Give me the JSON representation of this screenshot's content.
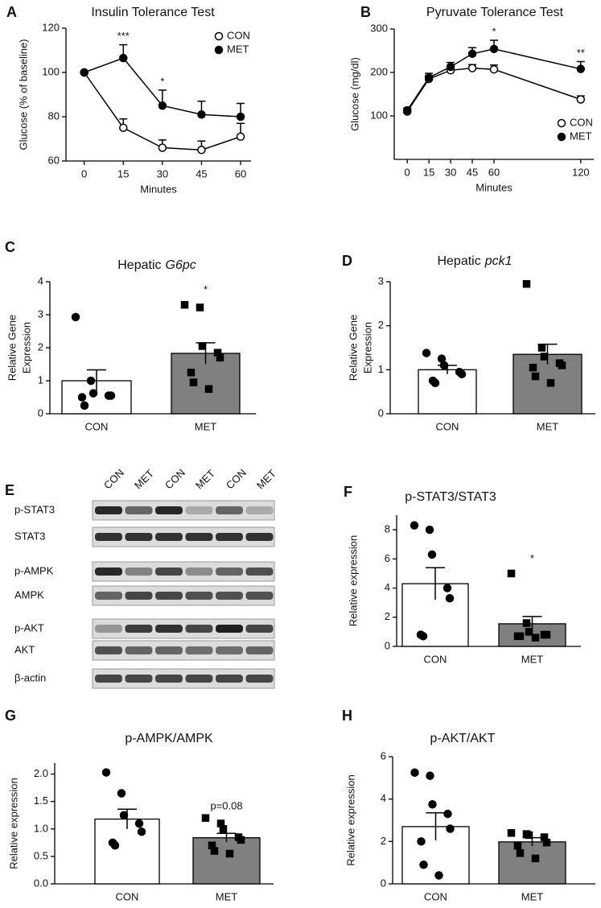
{
  "chart_data": [
    {
      "panel": "A",
      "type": "line",
      "title": "Insulin Tolerance Test",
      "xlabel": "Minutes",
      "ylabel": "Glucose (% of baseline)",
      "x": [
        0,
        15,
        30,
        45,
        60
      ],
      "xlim": [
        -7,
        64
      ],
      "xticks": [
        0,
        15,
        30,
        45,
        60
      ],
      "ylim": [
        60,
        120
      ],
      "yticks": [
        60,
        80,
        100,
        120
      ],
      "legend": "upper right",
      "series": [
        {
          "name": "CON",
          "color": "#000000",
          "fill": "#ffffff",
          "values": [
            100,
            75,
            66,
            65,
            71
          ],
          "errors": [
            0,
            4,
            3.5,
            4,
            6
          ]
        },
        {
          "name": "MET",
          "color": "#000000",
          "fill": "#000000",
          "values": [
            100,
            106.5,
            85,
            81,
            80
          ],
          "errors": [
            0,
            6,
            7,
            6,
            6
          ]
        }
      ],
      "annotations": [
        null,
        "***",
        "*",
        null,
        null
      ]
    },
    {
      "panel": "B",
      "type": "line",
      "title": "Pyruvate Tolerance Test",
      "xlabel": "Minutes",
      "ylabel": "Glucose (mg/dl)",
      "x": [
        0,
        15,
        30,
        45,
        60,
        120
      ],
      "xlim": [
        -9,
        129
      ],
      "xticks": [
        0,
        15,
        30,
        45,
        60,
        120
      ],
      "ylim": [
        0,
        300
      ],
      "yticks": [
        100,
        200,
        300
      ],
      "legend": "lower right",
      "series": [
        {
          "name": "CON",
          "color": "#000000",
          "fill": "#ffffff",
          "values": [
            110,
            185,
            205,
            210,
            207,
            138
          ],
          "errors": [
            5,
            8,
            8,
            8,
            10,
            8
          ]
        },
        {
          "name": "MET",
          "color": "#000000",
          "fill": "#000000",
          "values": [
            113,
            188,
            213,
            243,
            254,
            208
          ],
          "errors": [
            5,
            10,
            10,
            14,
            20,
            17
          ]
        }
      ],
      "annotations": [
        null,
        null,
        null,
        null,
        "*",
        "**"
      ]
    },
    {
      "panel": "C",
      "type": "bar",
      "title": [
        "Hepatic",
        "G6pc"
      ],
      "title_italic": [
        false,
        true
      ],
      "ylabel": [
        "Relative Gene",
        "Expression"
      ],
      "categories": [
        "CON",
        "MET"
      ],
      "values": [
        1.0,
        1.83
      ],
      "errors": [
        0.33,
        0.32
      ],
      "colors": [
        "#ffffff",
        "#808080"
      ],
      "markers": [
        "circle",
        "square"
      ],
      "points": [
        [
          2.93,
          1.0,
          0.62,
          0.55,
          0.55,
          0.5,
          0.25
        ],
        [
          3.3,
          3.22,
          2.05,
          1.85,
          1.7,
          1.25,
          0.95,
          0.75
        ]
      ],
      "ylim": [
        0,
        4
      ],
      "yticks": [
        0,
        1,
        2,
        3,
        4
      ],
      "annotations": [
        null,
        "*"
      ]
    },
    {
      "panel": "D",
      "type": "bar",
      "title": [
        "Hepatic",
        "pck1"
      ],
      "title_italic": [
        false,
        true
      ],
      "ylabel": [
        "Relative Gene",
        "Expression"
      ],
      "categories": [
        "CON",
        "MET"
      ],
      "values": [
        1.0,
        1.35
      ],
      "errors": [
        0.1,
        0.23
      ],
      "colors": [
        "#ffffff",
        "#808080"
      ],
      "markers": [
        "circle",
        "square"
      ],
      "points": [
        [
          1.38,
          1.25,
          1.1,
          0.95,
          0.9,
          0.75,
          0.7
        ],
        [
          2.95,
          1.5,
          1.3,
          1.15,
          1.1,
          1.05,
          0.85,
          0.7
        ]
      ],
      "ylim": [
        0,
        3
      ],
      "yticks": [
        0,
        1,
        2,
        3
      ],
      "annotations": [
        null,
        null
      ]
    },
    {
      "panel": "F",
      "type": "bar",
      "title": "p-STAT3/STAT3",
      "ylabel": "Relative expression",
      "categories": [
        "CON",
        "MET"
      ],
      "values": [
        4.3,
        1.55
      ],
      "errors": [
        1.1,
        0.5
      ],
      "colors": [
        "#ffffff",
        "#808080"
      ],
      "markers": [
        "circle",
        "square"
      ],
      "points": [
        [
          8.3,
          8.0,
          6.3,
          4.0,
          3.3,
          0.8,
          0.7
        ],
        [
          5.0,
          1.6,
          1.0,
          0.8,
          0.8,
          0.7,
          0.7,
          0.6
        ]
      ],
      "ylim": [
        0,
        9
      ],
      "yticks": [
        0,
        2,
        4,
        6,
        8
      ],
      "annotations": [
        null,
        "*"
      ]
    },
    {
      "panel": "G",
      "type": "bar",
      "title": "p-AMPK/AMPK",
      "ylabel": "Relative expression",
      "categories": [
        "CON",
        "MET"
      ],
      "values": [
        1.18,
        0.84
      ],
      "errors": [
        0.18,
        0.08
      ],
      "colors": [
        "#ffffff",
        "#808080"
      ],
      "markers": [
        "circle",
        "square"
      ],
      "points": [
        [
          2.03,
          1.65,
          1.25,
          1.1,
          0.95,
          0.75,
          0.7
        ],
        [
          1.2,
          1.1,
          1.0,
          0.85,
          0.8,
          0.7,
          0.6,
          0.55
        ]
      ],
      "ylim": [
        0,
        2.2
      ],
      "yticks": [
        {
          "value": 0,
          "label": "0.0"
        },
        0.5,
        {
          "value": 1,
          "label": "1.0"
        },
        1.5,
        {
          "value": 2,
          "label": "2.0"
        }
      ],
      "annotations": [
        null,
        "p=0.08"
      ]
    },
    {
      "panel": "H",
      "type": "bar",
      "title": "p-AKT/AKT",
      "ylabel": "Relative expression",
      "categories": [
        "CON",
        "MET"
      ],
      "values": [
        2.7,
        1.98
      ],
      "errors": [
        0.65,
        0.2
      ],
      "colors": [
        "#ffffff",
        "#808080"
      ],
      "markers": [
        "circle",
        "square"
      ],
      "points": [
        [
          5.25,
          5.1,
          3.75,
          3.3,
          2.6,
          2.0,
          0.9,
          0.4
        ],
        [
          2.4,
          2.35,
          2.3,
          2.2,
          1.95,
          1.8,
          1.45,
          1.2
        ]
      ],
      "ylim": [
        0,
        6
      ],
      "yticks": [
        0,
        2,
        4,
        6
      ],
      "annotations": [
        null,
        null
      ]
    }
  ],
  "blot": {
    "panel": "E",
    "lanes": [
      "CON",
      "MET",
      "CON",
      "MET",
      "CON",
      "MET"
    ],
    "rows": [
      "p-STAT3",
      "STAT3",
      "p-AMPK",
      "AMPK",
      "p-AKT",
      "AKT",
      "β-actin"
    ]
  }
}
